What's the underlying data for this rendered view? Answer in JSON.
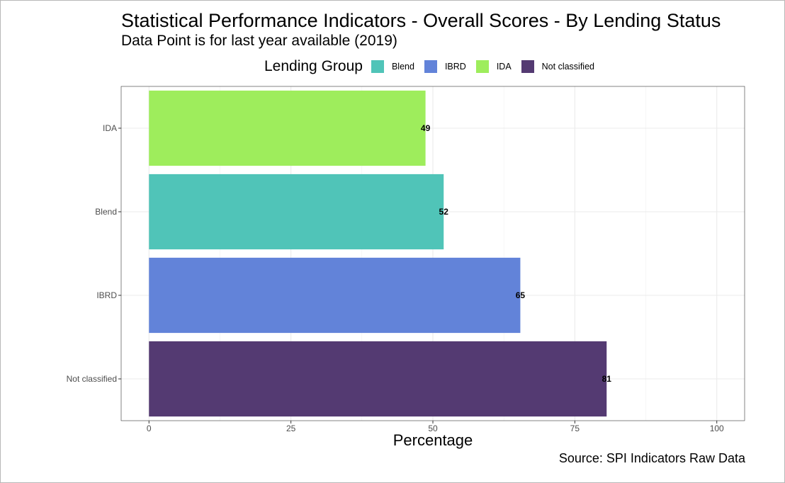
{
  "title": "Statistical Performance Indicators - Overall Scores - By Lending Status",
  "subtitle": "Data Point is for last year available (2019)",
  "caption": "Source: SPI Indicators Raw Data",
  "legend": {
    "title": "Lending Group",
    "items": [
      {
        "label": "Blend",
        "color": "#50c4b8"
      },
      {
        "label": "IBRD",
        "color": "#6283d9"
      },
      {
        "label": "IDA",
        "color": "#9eed5c"
      },
      {
        "label": "Not classified",
        "color": "#543a72"
      }
    ]
  },
  "chart_data": {
    "type": "bar",
    "orientation": "horizontal",
    "xlabel": "Percentage",
    "ylabel": "",
    "xlim": [
      0,
      100
    ],
    "x_ticks": [
      0,
      25,
      50,
      75,
      100
    ],
    "grid": true,
    "legend_position": "top",
    "categories": [
      "IDA",
      "Blend",
      "IBRD",
      "Not classified"
    ],
    "values": [
      48.7,
      51.9,
      65.4,
      80.6
    ],
    "data_labels": [
      "49",
      "52",
      "65",
      "81"
    ],
    "colors": [
      "#9eed5c",
      "#50c4b8",
      "#6283d9",
      "#543a72"
    ]
  }
}
